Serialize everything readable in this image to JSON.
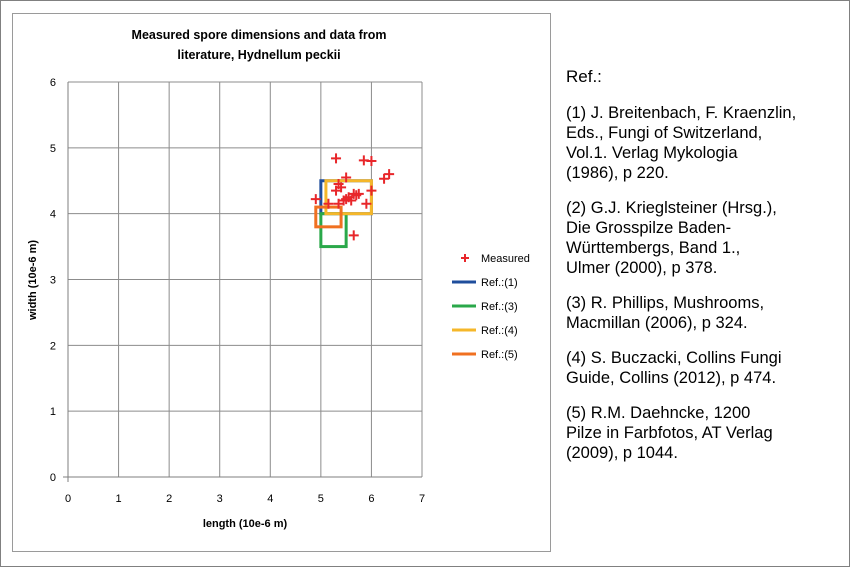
{
  "chart_data": {
    "type": "scatter",
    "title": "Measured spore dimensions and data from literature, Hydnellum peckii",
    "title_lines": [
      "Measured spore dimensions and data from",
      "literature, Hydnellum peckii"
    ],
    "xlabel": "length (10e-6 m)",
    "ylabel": "width (10e-6 m)",
    "xlim": [
      0,
      7
    ],
    "ylim": [
      0,
      6
    ],
    "xticks": [
      "0",
      "1",
      "2",
      "3",
      "4",
      "5",
      "6",
      "7"
    ],
    "yticks": [
      "0",
      "1",
      "2",
      "3",
      "4",
      "5",
      "6"
    ],
    "grid": true,
    "legend_position": "right",
    "series": [
      {
        "name": "Measured",
        "kind": "scatter",
        "marker": "plus",
        "color": "#e8262a",
        "points": [
          [
            5.3,
            4.84
          ],
          [
            5.85,
            4.81
          ],
          [
            6.0,
            4.8
          ],
          [
            6.35,
            4.6
          ],
          [
            6.25,
            4.53
          ],
          [
            5.35,
            4.45
          ],
          [
            5.4,
            4.4
          ],
          [
            5.5,
            4.55
          ],
          [
            5.3,
            4.35
          ],
          [
            5.75,
            4.3
          ],
          [
            5.65,
            4.3
          ],
          [
            5.55,
            4.25
          ],
          [
            5.6,
            4.2
          ],
          [
            5.45,
            4.2
          ],
          [
            5.5,
            4.22
          ],
          [
            5.9,
            4.15
          ],
          [
            4.9,
            4.22
          ],
          [
            5.35,
            4.15
          ],
          [
            5.65,
            3.67
          ],
          [
            6.0,
            4.35
          ],
          [
            5.15,
            4.15
          ],
          [
            5.7,
            4.28
          ]
        ]
      },
      {
        "name": "Ref.:(1)",
        "kind": "rectangle",
        "color": "#1f4e9c",
        "x_range": [
          5.0,
          6.0
        ],
        "y_range": [
          4.0,
          4.5
        ]
      },
      {
        "name": "Ref.:(3)",
        "kind": "rectangle",
        "color": "#2aa84a",
        "x_range": [
          5.0,
          5.5
        ],
        "y_range": [
          3.5,
          4.0
        ]
      },
      {
        "name": "Ref.:(4)",
        "kind": "rectangle",
        "color": "#f5b72a",
        "x_range": [
          5.1,
          6.0
        ],
        "y_range": [
          4.0,
          4.5
        ]
      },
      {
        "name": "Ref.:(5)",
        "kind": "rectangle",
        "color": "#f07020",
        "x_range": [
          4.9,
          5.4
        ],
        "y_range": [
          3.8,
          4.1
        ]
      }
    ]
  },
  "references": {
    "heading": "Ref.:",
    "items": [
      "(1) J. Breitenbach, F. Kraenzlin,\nEds., Fungi of Switzerland,\nVol.1. Verlag Mykologia\n(1986), p 220.",
      "(2) G.J. Krieglsteiner (Hrsg.),\nDie Grosspilze Baden-\nWürttembergs, Band 1.,\nUlmer (2000), p 378.",
      "(3) R. Phillips, Mushrooms,\nMacmillan (2006), p 324.",
      "(4) S. Buczacki, Collins Fungi\nGuide, Collins (2012), p 474.",
      "(5) R.M. Daehncke, 1200\nPilze in Farbfotos, AT Verlag\n(2009), p 1044."
    ]
  }
}
